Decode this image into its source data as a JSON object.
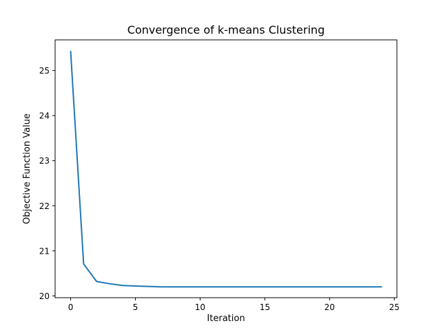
{
  "chart_data": {
    "type": "line",
    "title": "Convergence of k-means Clustering",
    "xlabel": "Iteration",
    "ylabel": "Objective Function Value",
    "xlim": [
      -1.2,
      25.2
    ],
    "ylim": [
      19.96,
      25.68
    ],
    "xticks": [
      0,
      5,
      10,
      15,
      20,
      25
    ],
    "yticks": [
      20,
      21,
      22,
      23,
      24,
      25
    ],
    "grid": false,
    "series": [
      {
        "color": "#1f77b4",
        "x": [
          0,
          1,
          2,
          3,
          4,
          5,
          6,
          7,
          8,
          9,
          10,
          11,
          12,
          13,
          14,
          15,
          16,
          17,
          18,
          19,
          20,
          21,
          22,
          23,
          24
        ],
        "y": [
          25.42,
          20.71,
          20.32,
          20.27,
          20.23,
          20.22,
          20.21,
          20.2,
          20.2,
          20.2,
          20.2,
          20.2,
          20.2,
          20.2,
          20.2,
          20.2,
          20.2,
          20.2,
          20.2,
          20.2,
          20.2,
          20.2,
          20.2,
          20.2,
          20.2
        ]
      }
    ]
  }
}
